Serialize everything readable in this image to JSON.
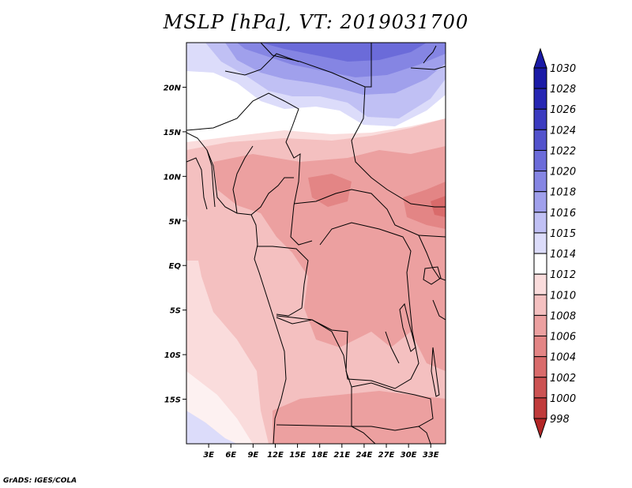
{
  "title": "MSLP [hPa], VT: 2019031700",
  "footer": "GrADS: IGES/COLA",
  "map": {
    "lon_range": [
      0,
      35
    ],
    "lat_range": [
      -20,
      25
    ],
    "lon_ticks": [
      "3E",
      "6E",
      "9E",
      "12E",
      "15E",
      "18E",
      "21E",
      "24E",
      "27E",
      "30E",
      "33E"
    ],
    "lat_ticks": [
      "20N",
      "15N",
      "10N",
      "5N",
      "EQ",
      "5S",
      "10S",
      "15S"
    ]
  },
  "colorbar": {
    "levels": [
      {
        "label": "1030",
        "color": "#1a1aa6"
      },
      {
        "label": "1028",
        "color": "#2626b3"
      },
      {
        "label": "1026",
        "color": "#3b3bc0"
      },
      {
        "label": "1024",
        "color": "#5252cc"
      },
      {
        "label": "1022",
        "color": "#6b6bd9"
      },
      {
        "label": "1020",
        "color": "#8585e3"
      },
      {
        "label": "1018",
        "color": "#a0a0ec"
      },
      {
        "label": "1016",
        "color": "#c0c0f4"
      },
      {
        "label": "1015",
        "color": "#dcdcfa"
      },
      {
        "label": "1014",
        "color": "#ffffff"
      },
      {
        "label": "1012",
        "color": "#fadcdc"
      },
      {
        "label": "1010",
        "color": "#f4c0c0"
      },
      {
        "label": "1008",
        "color": "#eca0a0"
      },
      {
        "label": "1006",
        "color": "#e38585"
      },
      {
        "label": "1004",
        "color": "#d96b6b"
      },
      {
        "label": "1002",
        "color": "#cc5252"
      },
      {
        "label": "1000",
        "color": "#c03b3b"
      },
      {
        "label": "998",
        "color": "#b32626"
      }
    ],
    "top_arrow_color": "#1a1aa6",
    "bottom_arrow_color": "#b32626"
  }
}
